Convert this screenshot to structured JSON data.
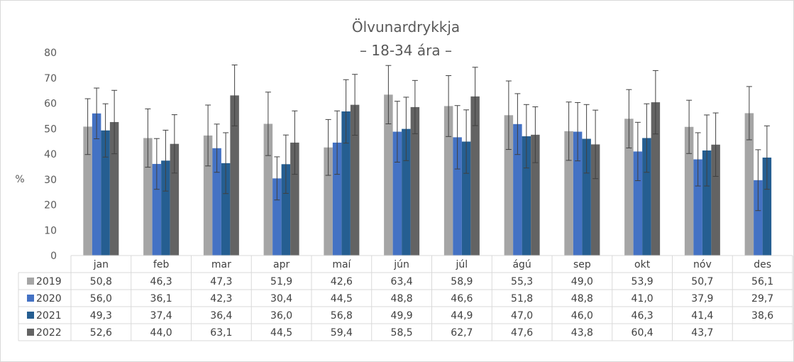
{
  "chart_data": {
    "type": "bar",
    "title": "Ölvunardrykkja",
    "subtitle": "– 18-34 ára –",
    "xlabel": "",
    "ylabel": "%",
    "ylim": [
      0,
      80
    ],
    "yticks": [
      0,
      10,
      20,
      30,
      40,
      50,
      60,
      70,
      80
    ],
    "grid": false,
    "legend": "data-table",
    "error_bars": true,
    "categories": [
      "jan",
      "feb",
      "mar",
      "apr",
      "maí",
      "jún",
      "júl",
      "ágú",
      "sep",
      "okt",
      "nóv",
      "des"
    ],
    "series": [
      {
        "name": "2019",
        "color": "#a5a5a5",
        "values": [
          50.8,
          46.3,
          47.3,
          51.9,
          42.6,
          63.4,
          58.9,
          55.3,
          49.0,
          53.9,
          50.7,
          56.1
        ],
        "labels": [
          "50,8",
          "46,3",
          "47,3",
          "51,9",
          "42,6",
          "63,4",
          "58,9",
          "55,3",
          "49,0",
          "53,9",
          "50,7",
          "56,1"
        ],
        "errors": [
          11.0,
          11.5,
          12.0,
          12.5,
          11.0,
          11.5,
          12.0,
          13.5,
          11.5,
          11.5,
          10.5,
          10.5
        ]
      },
      {
        "name": "2020",
        "color": "#4472c4",
        "values": [
          56.0,
          36.1,
          42.3,
          30.4,
          44.5,
          48.8,
          46.6,
          51.8,
          48.8,
          41.0,
          37.9,
          29.7
        ],
        "labels": [
          "56,0",
          "36,1",
          "42,3",
          "30,4",
          "44,5",
          "48,8",
          "46,6",
          "51,8",
          "48,8",
          "41,0",
          "37,9",
          "29,7"
        ],
        "errors": [
          10.0,
          10.0,
          9.5,
          8.5,
          12.5,
          12.0,
          12.5,
          12.0,
          11.5,
          11.5,
          10.5,
          12.0
        ]
      },
      {
        "name": "2021",
        "color": "#255e91",
        "values": [
          49.3,
          37.4,
          36.4,
          36.0,
          56.8,
          49.9,
          44.9,
          47.0,
          46.0,
          46.3,
          41.4,
          38.6
        ],
        "labels": [
          "49,3",
          "37,4",
          "36,4",
          "36,0",
          "56,8",
          "49,9",
          "44,9",
          "47,0",
          "46,0",
          "46,3",
          "41,4",
          "38,6"
        ],
        "errors": [
          10.5,
          12.0,
          12.0,
          11.5,
          12.5,
          12.5,
          12.5,
          12.5,
          13.5,
          13.5,
          14.0,
          12.5
        ]
      },
      {
        "name": "2022",
        "color": "#636363",
        "values": [
          52.6,
          44.0,
          63.1,
          44.5,
          59.4,
          58.5,
          62.7,
          47.6,
          43.8,
          60.4,
          43.7,
          null
        ],
        "labels": [
          "52,6",
          "44,0",
          "63,1",
          "44,5",
          "59,4",
          "58,5",
          "62,7",
          "47,6",
          "43,8",
          "60,4",
          "43,7",
          ""
        ],
        "errors": [
          12.5,
          11.5,
          12.0,
          12.5,
          12.0,
          10.5,
          11.5,
          11.0,
          13.5,
          12.5,
          12.5,
          null
        ]
      }
    ]
  }
}
